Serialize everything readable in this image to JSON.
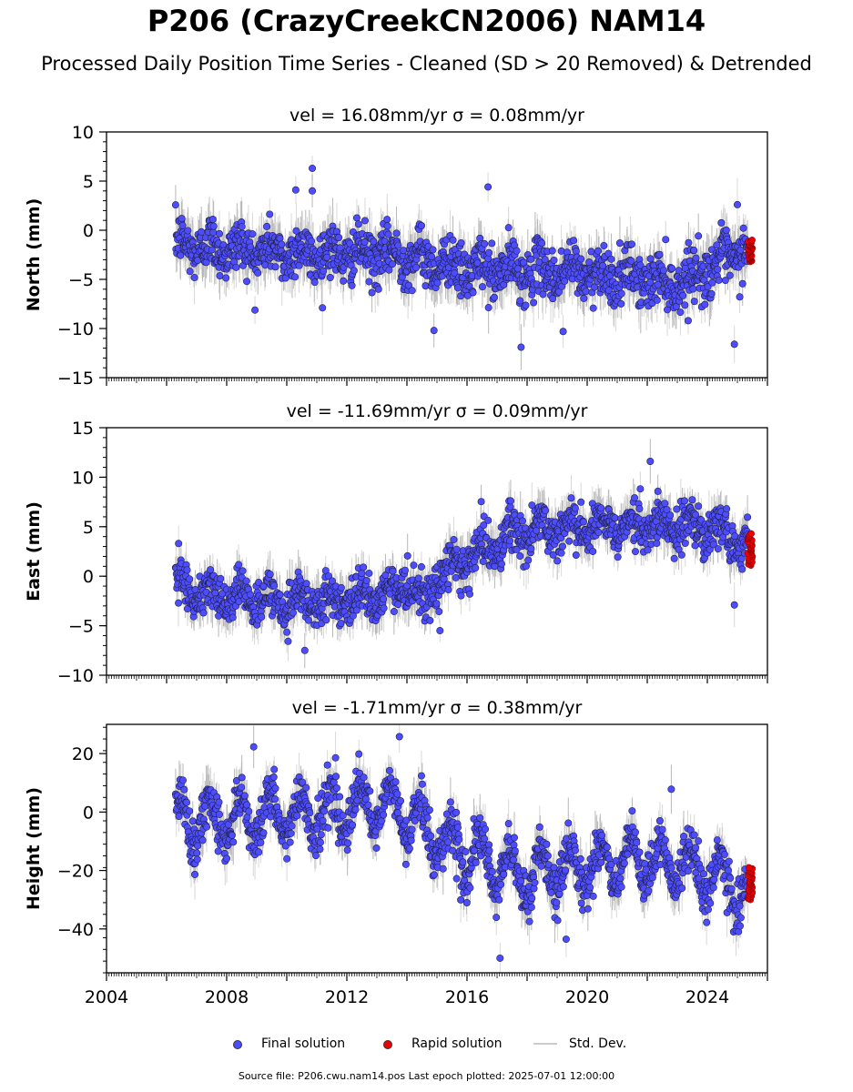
{
  "title": "P206 (CrazyCreekCN2006) NAM14",
  "subtitle": "Processed Daily Position Time Series - Cleaned (SD > 20 Removed) & Detrended",
  "legend": {
    "final": "Final solution",
    "rapid": "Rapid solution",
    "std": "Std. Dev."
  },
  "footer": "Source file: P206.cwu.nam14.pos  Last epoch plotted: 2025-07-01 12:00:00",
  "colors": {
    "final": "#4d4dff",
    "rapid": "#ee0000",
    "std": "#c8c8c8",
    "edge": "#222244"
  },
  "chart_data": [
    {
      "type": "scatter",
      "title": "vel = 16.08mm/yr   σ = 0.08mm/yr",
      "ylabel": "North (mm)",
      "xlim": [
        2004,
        2026
      ],
      "ylim": [
        -15,
        10
      ],
      "yticks": [
        -15,
        -10,
        -5,
        0,
        5,
        10
      ],
      "xticks": [
        2004,
        2008,
        2012,
        2016,
        2020,
        2024
      ],
      "series": [
        {
          "name": "Final solution",
          "x_range": [
            2006.3,
            2025.35
          ],
          "trend": [
            [
              2006.3,
              -1.5
            ],
            [
              2010,
              -2.3
            ],
            [
              2014,
              -2.6
            ],
            [
              2016,
              -4.0
            ],
            [
              2020,
              -4.3
            ],
            [
              2023,
              -5.4
            ],
            [
              2025.3,
              -2.0
            ]
          ],
          "annual_amplitude": 0.8,
          "scatter_sd": 1.3,
          "outliers": [
            [
              2010.85,
              6.3
            ],
            [
              2010.85,
              4.0
            ],
            [
              2010.3,
              4.1
            ],
            [
              2016.7,
              4.4
            ],
            [
              2017.8,
              -11.9
            ],
            [
              2024.9,
              -11.6
            ],
            [
              2025.0,
              2.6
            ],
            [
              2014.9,
              -10.2
            ],
            [
              2019.2,
              -10.3
            ]
          ]
        },
        {
          "name": "Rapid solution",
          "x_range": [
            2025.35,
            2025.5
          ],
          "y_range": [
            -3.2,
            -1.0
          ]
        }
      ]
    },
    {
      "type": "scatter",
      "title": "vel = -11.69mm/yr   σ = 0.09mm/yr",
      "ylabel": "East (mm)",
      "xlim": [
        2004,
        2026
      ],
      "ylim": [
        -10,
        15
      ],
      "yticks": [
        -10,
        -5,
        0,
        5,
        10,
        15
      ],
      "xticks": [
        2004,
        2008,
        2012,
        2016,
        2020,
        2024
      ],
      "series": [
        {
          "name": "Final solution",
          "x_range": [
            2006.3,
            2025.35
          ],
          "trend": [
            [
              2006.3,
              -1.0
            ],
            [
              2008,
              -2.0
            ],
            [
              2010,
              -2.7
            ],
            [
              2012,
              -2.5
            ],
            [
              2014,
              -1.3
            ],
            [
              2014.6,
              -3.0
            ],
            [
              2015,
              0.0
            ],
            [
              2016,
              1.5
            ],
            [
              2017.5,
              4.2
            ],
            [
              2020,
              5.2
            ],
            [
              2024,
              5.0
            ],
            [
              2025.3,
              3.0
            ]
          ],
          "annual_amplitude": 1.0,
          "scatter_sd": 1.1,
          "outliers": [
            [
              2024.9,
              -2.9
            ],
            [
              2022.1,
              11.6
            ],
            [
              2006.4,
              3.3
            ],
            [
              2015.1,
              -5.5
            ],
            [
              2010.6,
              -7.5
            ]
          ]
        },
        {
          "name": "Rapid solution",
          "x_range": [
            2025.35,
            2025.5
          ],
          "y_range": [
            1.1,
            4.3
          ]
        }
      ]
    },
    {
      "type": "scatter",
      "title": "vel = -1.71mm/yr   σ = 0.38mm/yr",
      "ylabel": "Height (mm)",
      "xlim": [
        2004,
        2026
      ],
      "ylim": [
        -55,
        30
      ],
      "yticks": [
        -40,
        -20,
        0,
        20
      ],
      "xticks": [
        2004,
        2008,
        2012,
        2016,
        2020,
        2024
      ],
      "series": [
        {
          "name": "Final solution",
          "x_range": [
            2006.3,
            2025.35
          ],
          "trend": [
            [
              2006.3,
              -3.0
            ],
            [
              2010,
              -1.0
            ],
            [
              2013.5,
              2.0
            ],
            [
              2014.5,
              -5.0
            ],
            [
              2016,
              -15.0
            ],
            [
              2018,
              -22.0
            ],
            [
              2020,
              -18.0
            ],
            [
              2023,
              -17.0
            ],
            [
              2025.3,
              -27.0
            ]
          ],
          "annual_amplitude": 8.0,
          "scatter_sd": 4.0,
          "outliers": [
            [
              2013.75,
              25.8
            ],
            [
              2008.9,
              22.3
            ],
            [
              2017.1,
              -50.0
            ],
            [
              2019.3,
              -43.5
            ],
            [
              2022.8,
              7.8
            ]
          ]
        },
        {
          "name": "Rapid solution",
          "x_range": [
            2025.35,
            2025.5
          ],
          "y_range": [
            -30.0,
            -19.0
          ]
        }
      ]
    }
  ],
  "xtick_labels": [
    "2004",
    "2008",
    "2012",
    "2016",
    "2020",
    "2024"
  ]
}
